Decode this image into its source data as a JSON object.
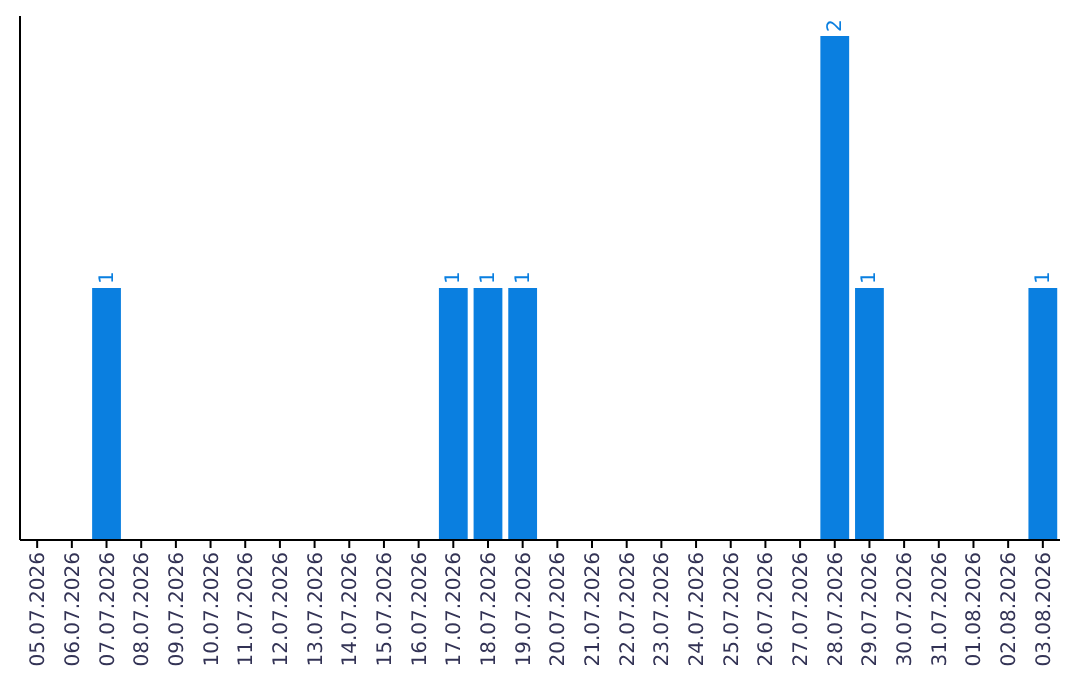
{
  "chart_data": {
    "type": "bar",
    "categories": [
      "05.07.2026",
      "06.07.2026",
      "07.07.2026",
      "08.07.2026",
      "09.07.2026",
      "10.07.2026",
      "11.07.2026",
      "12.07.2026",
      "13.07.2026",
      "14.07.2026",
      "15.07.2026",
      "16.07.2026",
      "17.07.2026",
      "18.07.2026",
      "19.07.2026",
      "20.07.2026",
      "21.07.2026",
      "22.07.2026",
      "23.07.2026",
      "24.07.2026",
      "25.07.2026",
      "26.07.2026",
      "27.07.2026",
      "28.07.2026",
      "29.07.2026",
      "30.07.2026",
      "31.07.2026",
      "01.08.2026",
      "02.08.2026",
      "03.08.2026"
    ],
    "values": [
      0,
      0,
      1,
      0,
      0,
      0,
      0,
      0,
      0,
      0,
      0,
      0,
      1,
      1,
      1,
      0,
      0,
      0,
      0,
      0,
      0,
      0,
      0,
      2,
      1,
      0,
      0,
      0,
      0,
      1
    ],
    "value_labels": [
      null,
      null,
      "1",
      null,
      null,
      null,
      null,
      null,
      null,
      null,
      null,
      null,
      "1",
      "1",
      "1",
      null,
      null,
      null,
      null,
      null,
      null,
      null,
      null,
      "2",
      "1",
      null,
      null,
      null,
      null,
      "1"
    ],
    "color": "#0a7fe0"
  }
}
